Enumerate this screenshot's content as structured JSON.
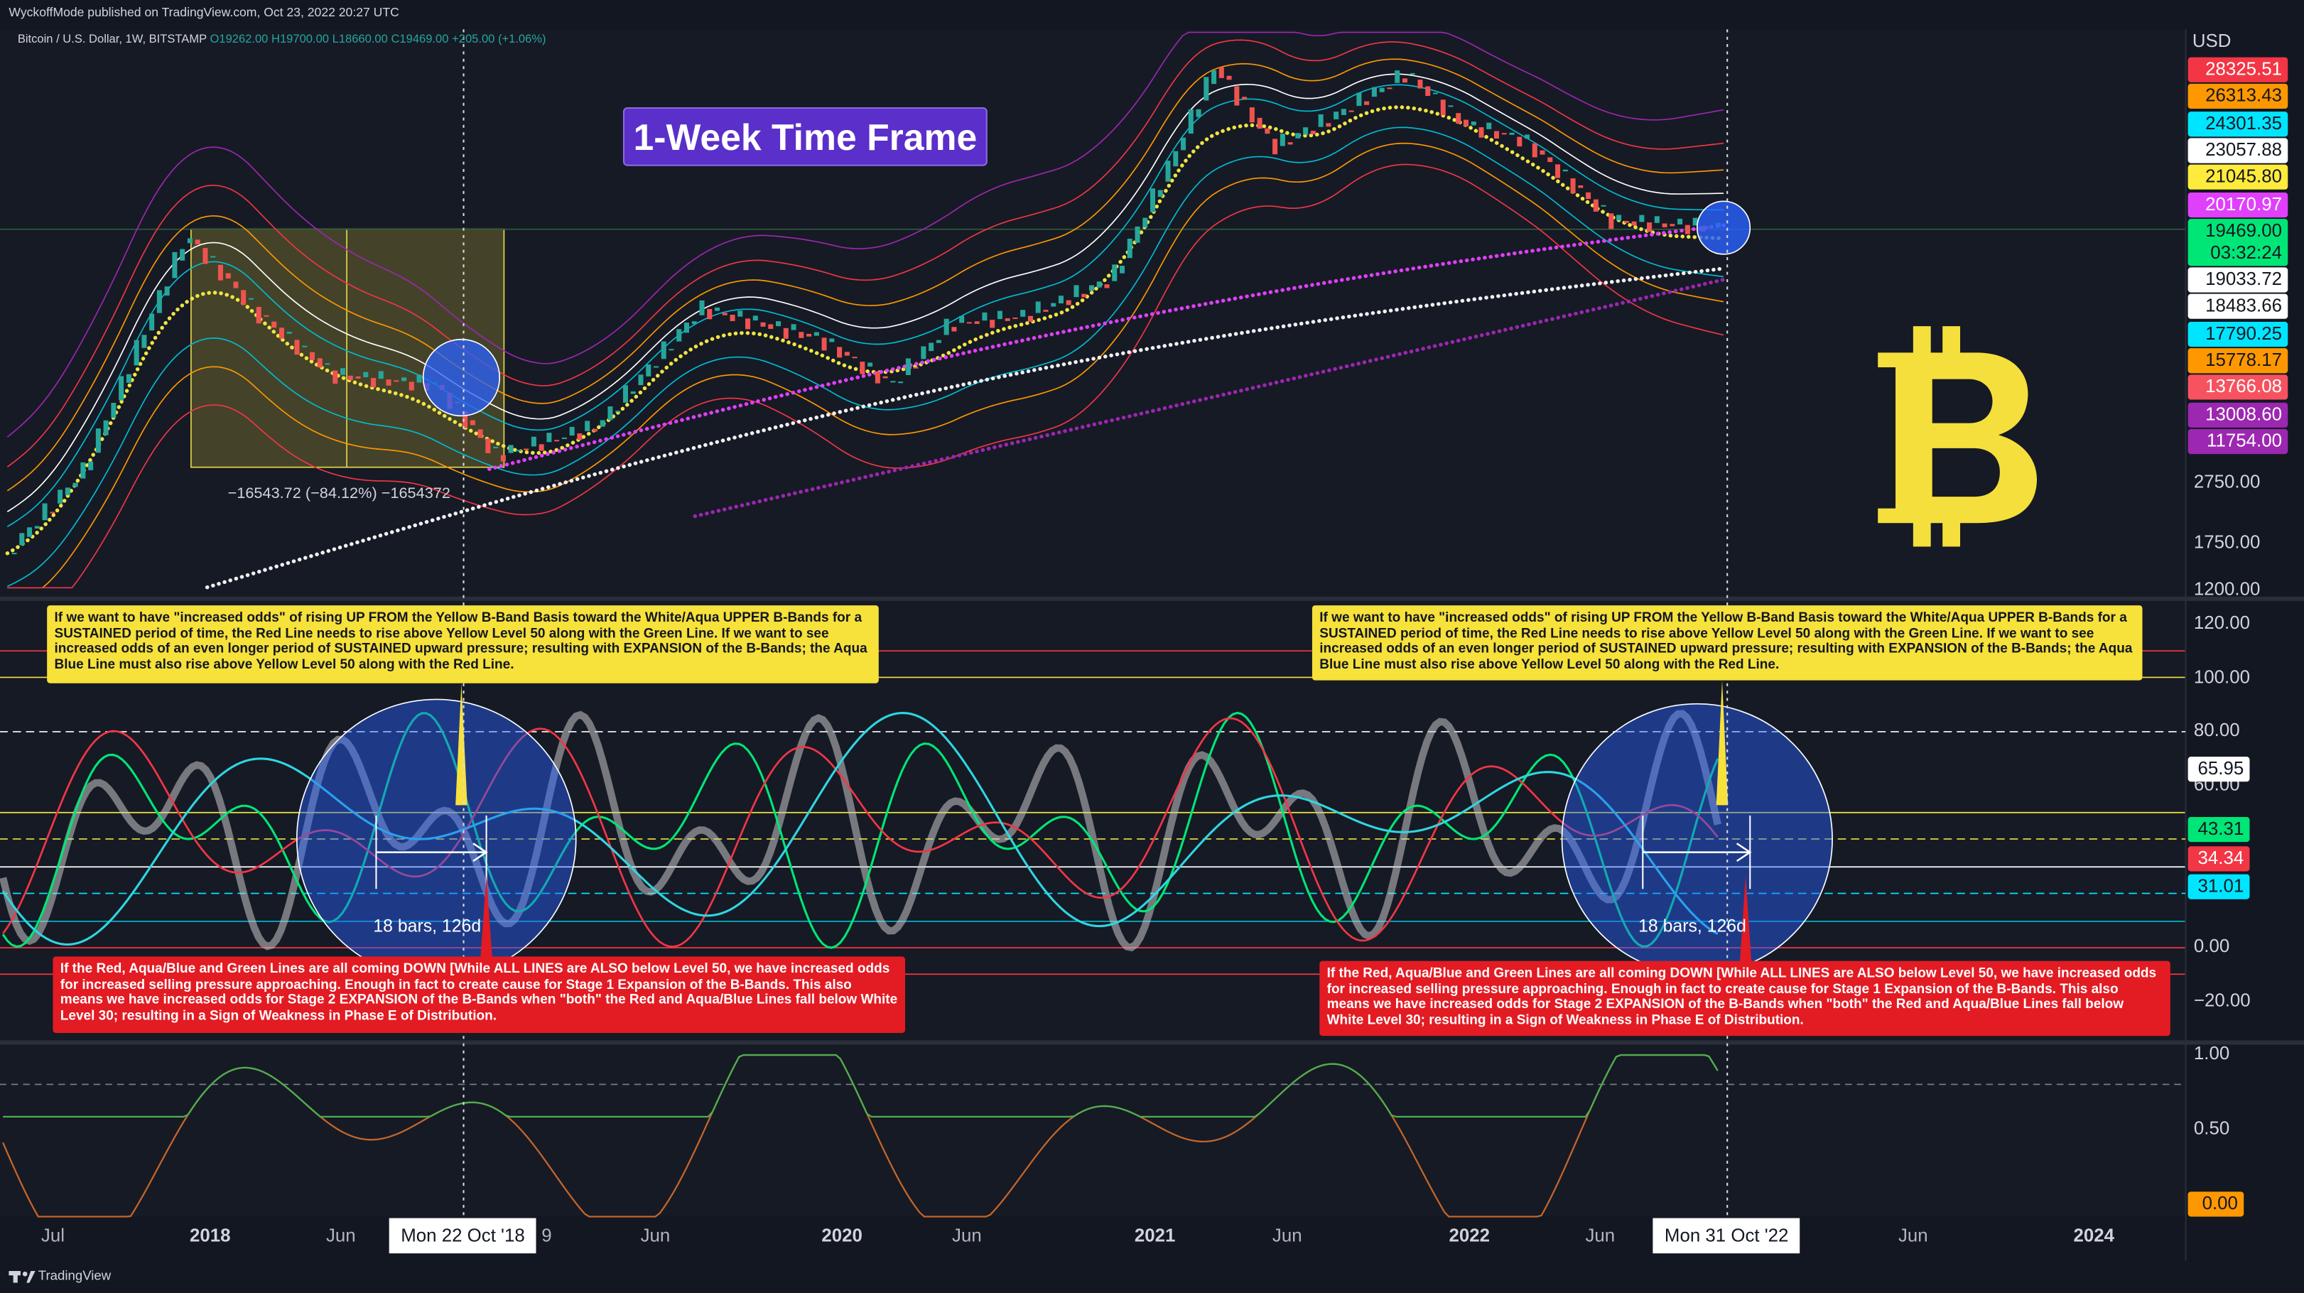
{
  "header": {
    "publisher": "WyckoffMode published on TradingView.com, Oct 23, 2022 20:27 UTC",
    "symbol": "Bitcoin / U.S. Dollar, 1W, BITSTAMP",
    "open": "O19262.00",
    "high": "H19700.00",
    "low": "L18660.00",
    "close": "C19469.00",
    "change": "+205.00 (+1.06%)"
  },
  "title_badge": "1-Week Time Frame",
  "measure_label": "−16543.72 (−84.12%) −1654372",
  "price_axis": {
    "currency": "USD",
    "boxes": [
      {
        "text": "28325.51",
        "color": "#f23645"
      },
      {
        "text": "26313.43",
        "color": "#ff9800"
      },
      {
        "text": "24301.35",
        "color": "#00e5ff"
      },
      {
        "text": "23057.88",
        "color": "#ffffff"
      },
      {
        "text": "21045.80",
        "color": "#ffeb3b"
      },
      {
        "text": "20170.97",
        "color": "#e040fb"
      },
      {
        "text": "19469.00",
        "color": "#00e676",
        "sub": "03:32:24"
      },
      {
        "text": "19033.72",
        "color": "#ffffff"
      },
      {
        "text": "18483.66",
        "color": "#ffffff"
      },
      {
        "text": "17790.25",
        "color": "#00e5ff"
      },
      {
        "text": "15778.17",
        "color": "#ff9800"
      },
      {
        "text": "13766.08",
        "color": "#f7525f"
      },
      {
        "text": "13008.60",
        "color": "#9c27b0"
      },
      {
        "text": "11754.00",
        "color": "#9c27b0"
      }
    ],
    "labels": [
      "2750.00",
      "1750.00",
      "1200.00"
    ]
  },
  "oscillator": {
    "labels": [
      "120.00",
      "100.00",
      "80.00",
      "60.00",
      "0.00",
      "−20.00"
    ],
    "boxes": [
      {
        "text": "65.95",
        "color": "#ffffff"
      },
      {
        "text": "43.31",
        "color": "#00e676"
      },
      {
        "text": "34.34",
        "color": "#f23645"
      },
      {
        "text": "31.01",
        "color": "#00e5ff"
      }
    ],
    "bar_count": [
      "18 bars, 126d",
      "18 bars, 126d"
    ],
    "notes_yellow": [
      "If we want to have \"increased odds\" of rising UP FROM the Yellow B-Band Basis toward the White/Aqua UPPER B-Bands for a SUSTAINED period of time, the Red Line needs to rise above Yellow Level 50 along with the Green Line.  If we want to see increased odds of an even longer period of SUSTAINED upward pressure; resulting with EXPANSION of the B-Bands; the Aqua Blue Line must also rise above Yellow Level 50 along with the Red Line.",
      "If we want to have \"increased odds\" of rising UP FROM the Yellow B-Band Basis toward the White/Aqua UPPER B-Bands for a SUSTAINED period of time, the Red Line needs to rise above Yellow Level 50 along with the Green Line.  If we want to see increased odds of an even longer period of SUSTAINED upward pressure; resulting with EXPANSION of the B-Bands; the Aqua Blue Line must also rise above Yellow Level 50 along with the Red Line."
    ],
    "notes_red": [
      "If the Red, Aqua/Blue and Green Lines are all coming DOWN [While ALL LINES are ALSO below Level 50, we have increased odds for increased selling pressure approaching.  Enough in fact to create cause for Stage 1 Expansion of the B-Bands.  This also means we have increased odds for Stage 2 EXPANSION of the B-Bands when \"both\" the Red and Aqua/Blue Lines fall below White Level 30; resulting in a Sign of Weakness in Phase E of Distribution.",
      "If the Red, Aqua/Blue and Green Lines are all coming DOWN [While ALL LINES are ALSO below Level 50, we have increased odds for increased selling pressure approaching.  Enough in fact to create cause for Stage 1 Expansion of the B-Bands.  This also means we have increased odds for Stage 2 EXPANSION of the B-Bands when \"both\" the Red and Aqua/Blue Lines fall below White Level 30; resulting in a Sign of Weakness in Phase E of Distribution."
    ]
  },
  "lower_pane": {
    "labels": [
      "1.00",
      "0.50"
    ],
    "box": "0.00"
  },
  "time_axis": {
    "labels": [
      "Jul",
      "2018",
      "Jun",
      "9",
      "Jun",
      "2020",
      "Jun",
      "2021",
      "Jun",
      "2022",
      "Jun",
      "Jun",
      "2024"
    ],
    "crosshair": [
      "Mon 22 Oct '18",
      "Mon 31 Oct '22"
    ]
  },
  "footer": "TradingView"
}
